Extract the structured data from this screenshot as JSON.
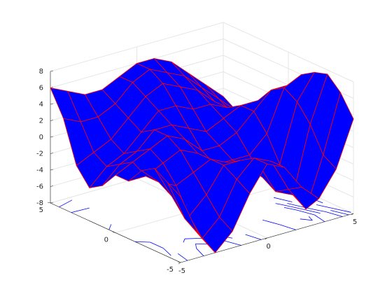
{
  "chart_data": {
    "type": "surfc",
    "x": [
      -5,
      -4,
      -3,
      -2,
      -1,
      0,
      1,
      2,
      3,
      4,
      5
    ],
    "y": [
      -5,
      -4,
      -3,
      -2,
      -1,
      0,
      1,
      2,
      3,
      4,
      5
    ],
    "z": [
      [
        0,
        -5,
        -8,
        -6,
        -2,
        1,
        0,
        -3,
        -5,
        -2,
        3.5
      ],
      [
        1,
        -4,
        -7,
        -5,
        -1,
        1,
        0,
        -4,
        -7,
        -1,
        6
      ],
      [
        2,
        -2,
        -5,
        -3,
        0,
        0,
        -1,
        -5,
        -6,
        2,
        7.5
      ],
      [
        1,
        -1,
        -2,
        -1,
        0,
        -1,
        -2,
        -4,
        -3,
        4,
        7
      ],
      [
        -1,
        -1,
        0,
        1,
        0,
        -2,
        -2,
        -2,
        0,
        5,
        6
      ],
      [
        -1,
        0,
        1,
        2,
        1,
        -1,
        -1,
        0,
        2,
        4,
        4
      ],
      [
        -3,
        -1,
        0,
        2,
        2,
        1,
        0,
        1,
        2,
        2,
        1
      ],
      [
        -4,
        -2,
        -1,
        1,
        3,
        3,
        2,
        2,
        1,
        0,
        -2
      ],
      [
        -2,
        -1,
        0,
        2,
        4,
        5,
        4,
        3,
        1,
        -1,
        -3
      ],
      [
        3,
        2,
        2,
        3,
        5,
        6,
        5,
        4,
        2,
        0,
        -2
      ],
      [
        6,
        5,
        4,
        4,
        5,
        6,
        6,
        5,
        3,
        1,
        -1
      ]
    ],
    "surface_color": "#0000ff",
    "edge_color": "#ff0000",
    "contour_color": "#0000ff",
    "contour_levels": [
      -6,
      -4,
      -2,
      0,
      2,
      4,
      6
    ],
    "xlim": [
      -5,
      5
    ],
    "ylim": [
      -5,
      5
    ],
    "zlim": [
      -8,
      8
    ],
    "xticks": [
      -5,
      0,
      5
    ],
    "yticks": [
      -5,
      0,
      5
    ],
    "zticks": [
      -8,
      -6,
      -4,
      -2,
      0,
      2,
      4,
      6,
      8
    ],
    "grid": true
  }
}
